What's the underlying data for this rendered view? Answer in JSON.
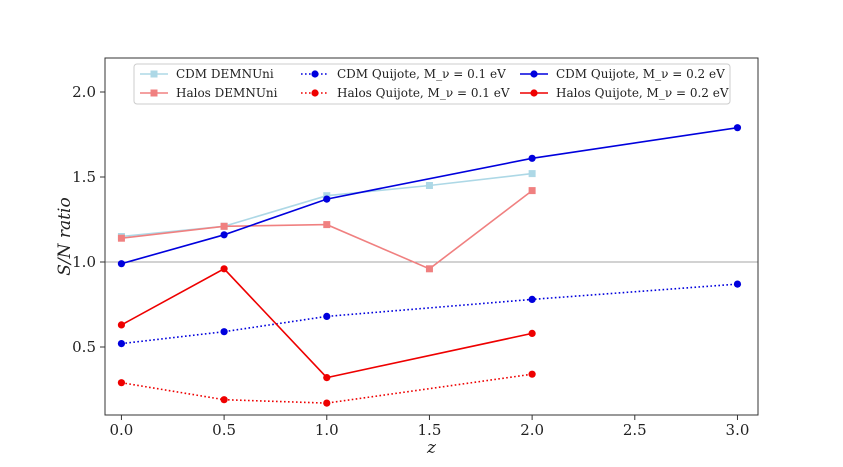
{
  "chart_data": {
    "type": "line",
    "xlabel": "z",
    "ylabel": "S/N ratio",
    "xlim": [
      -0.08,
      3.1
    ],
    "ylim": [
      0.1,
      2.2
    ],
    "xticks": [
      0.0,
      0.5,
      1.0,
      1.5,
      2.0,
      2.5,
      3.0
    ],
    "xtick_labels": [
      "0.0",
      "0.5",
      "1.0",
      "1.5",
      "2.0",
      "2.5",
      "3.0"
    ],
    "yticks": [
      0.5,
      1.0,
      1.5,
      2.0
    ],
    "ytick_labels": [
      "0.5",
      "1.0",
      "1.5",
      "2.0"
    ],
    "reference_line": {
      "y": 1.0,
      "color": "#888888"
    },
    "legend_position": "upper-center",
    "series": [
      {
        "name": "CDM DEMNUni",
        "color": "#add8e6",
        "marker": "square",
        "linestyle": "solid",
        "x": [
          0.0,
          0.5,
          1.0,
          1.5,
          2.0
        ],
        "y": [
          1.15,
          1.21,
          1.39,
          1.45,
          1.52
        ]
      },
      {
        "name": "Halos DEMNUni",
        "color": "#f08080",
        "marker": "square",
        "linestyle": "solid",
        "x": [
          0.0,
          0.5,
          1.0,
          1.5,
          2.0
        ],
        "y": [
          1.14,
          1.21,
          1.22,
          0.96,
          1.42
        ]
      },
      {
        "name": "CDM Quijote, M_ν = 0.1 eV",
        "color": "#0000dd",
        "marker": "circle",
        "linestyle": "dotted",
        "x": [
          0.0,
          0.5,
          1.0,
          2.0,
          3.0
        ],
        "y": [
          0.52,
          0.59,
          0.68,
          0.78,
          0.87
        ]
      },
      {
        "name": "Halos Quijote, M_ν = 0.1 eV",
        "color": "#ee0000",
        "marker": "circle",
        "linestyle": "dotted",
        "x": [
          0.0,
          0.5,
          1.0,
          2.0
        ],
        "y": [
          0.29,
          0.19,
          0.17,
          0.34
        ]
      },
      {
        "name": "CDM Quijote, M_ν = 0.2 eV",
        "color": "#0000dd",
        "marker": "circle",
        "linestyle": "solid",
        "x": [
          0.0,
          0.5,
          1.0,
          2.0,
          3.0
        ],
        "y": [
          0.99,
          1.16,
          1.37,
          1.61,
          1.79
        ]
      },
      {
        "name": "Halos Quijote, M_ν = 0.2 eV",
        "color": "#ee0000",
        "marker": "circle",
        "linestyle": "solid",
        "x": [
          0.0,
          0.5,
          1.0,
          2.0
        ],
        "y": [
          0.63,
          0.96,
          0.32,
          0.58
        ]
      }
    ]
  }
}
